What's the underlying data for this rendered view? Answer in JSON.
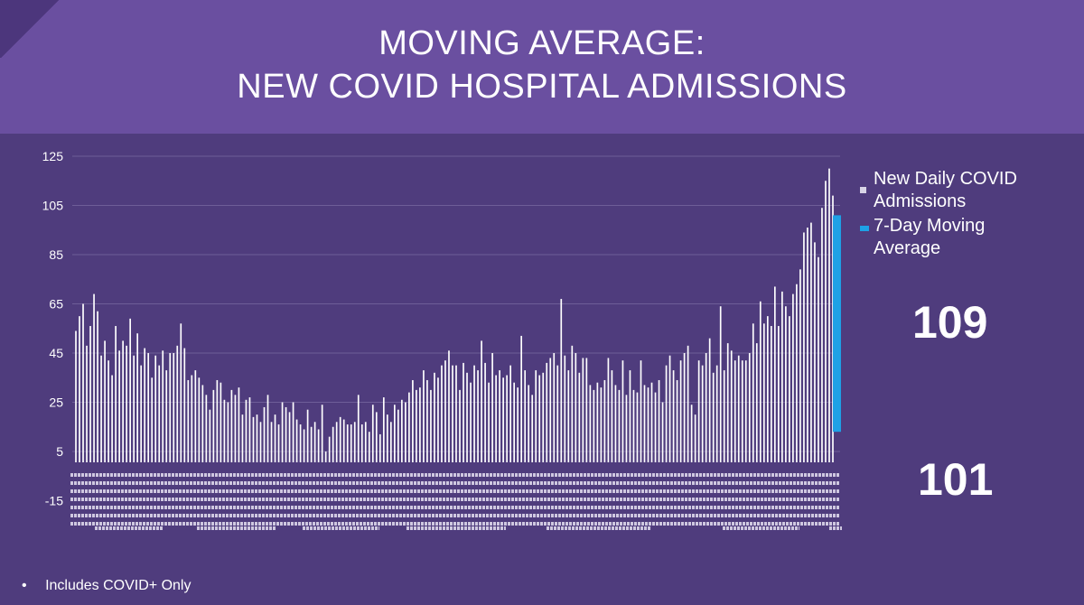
{
  "header": {
    "title_line1": "MOVING AVERAGE:",
    "title_line2": "NEW COVID HOSPITAL ADMISSIONS"
  },
  "colors": {
    "background": "#4f3c7d",
    "header": "#6a4fa0",
    "daily_bars": "#ffffff",
    "moving_average": "#1ea1e6",
    "gridline": "#6e5e98"
  },
  "legend": {
    "daily_label_line1": "New Daily COVID",
    "daily_label_line2": "Admissions",
    "avg_label_line1": "7-Day Moving",
    "avg_label_line2": "Average"
  },
  "callouts": {
    "latest_daily": "109",
    "latest_average": "101"
  },
  "footnote": {
    "bullet": "•",
    "text": "Includes COVID+ Only"
  },
  "chart_data": {
    "type": "bar",
    "yticks": [
      "125",
      "105",
      "85",
      "65",
      "45",
      "25",
      "5",
      "-15"
    ],
    "ylim": [
      -15,
      125
    ],
    "grid": true,
    "legend_position": "right",
    "series": [
      {
        "name": "New Daily COVID Admissions",
        "values": [
          54,
          60,
          65,
          48,
          56,
          69,
          62,
          44,
          50,
          42,
          36,
          56,
          46,
          50,
          48,
          59,
          44,
          53,
          40,
          47,
          45,
          35,
          44,
          40,
          46,
          38,
          45,
          45,
          48,
          57,
          47,
          34,
          36,
          38,
          35,
          32,
          28,
          22,
          30,
          34,
          33,
          26,
          25,
          30,
          28,
          31,
          20,
          26,
          27,
          19,
          20,
          17,
          23,
          28,
          17,
          20,
          16,
          25,
          23,
          21,
          25,
          18,
          16,
          14,
          22,
          15,
          17,
          14,
          24,
          5,
          11,
          15,
          17,
          19,
          18,
          16,
          16,
          17,
          28,
          16,
          17,
          13,
          24,
          21,
          12,
          27,
          20,
          17,
          24,
          22,
          26,
          25,
          29,
          34,
          30,
          31,
          38,
          34,
          30,
          37,
          35,
          40,
          42,
          46,
          40,
          40,
          30,
          41,
          37,
          33,
          40,
          38,
          50,
          41,
          33,
          45,
          36,
          38,
          35,
          36,
          40,
          33,
          31,
          52,
          38,
          32,
          28,
          38,
          36,
          37,
          41,
          43,
          45,
          40,
          67,
          44,
          38,
          48,
          45,
          37,
          43,
          43,
          32,
          30,
          33,
          31,
          34,
          43,
          38,
          32,
          30,
          42,
          28,
          38,
          30,
          29,
          42,
          32,
          31,
          33,
          29,
          34,
          25,
          40,
          44,
          38,
          34,
          42,
          45,
          48,
          24,
          20,
          42,
          40,
          45,
          51,
          37,
          40,
          64,
          38,
          49,
          46,
          42,
          44,
          42,
          42,
          45,
          57,
          49,
          66,
          57,
          60,
          56,
          72,
          56,
          70,
          64,
          60,
          69,
          73,
          79,
          94,
          96,
          98,
          90,
          84,
          104,
          115,
          120,
          109
        ]
      },
      {
        "name": "7-Day Moving Average",
        "values": [
          13,
          101
        ]
      }
    ]
  }
}
